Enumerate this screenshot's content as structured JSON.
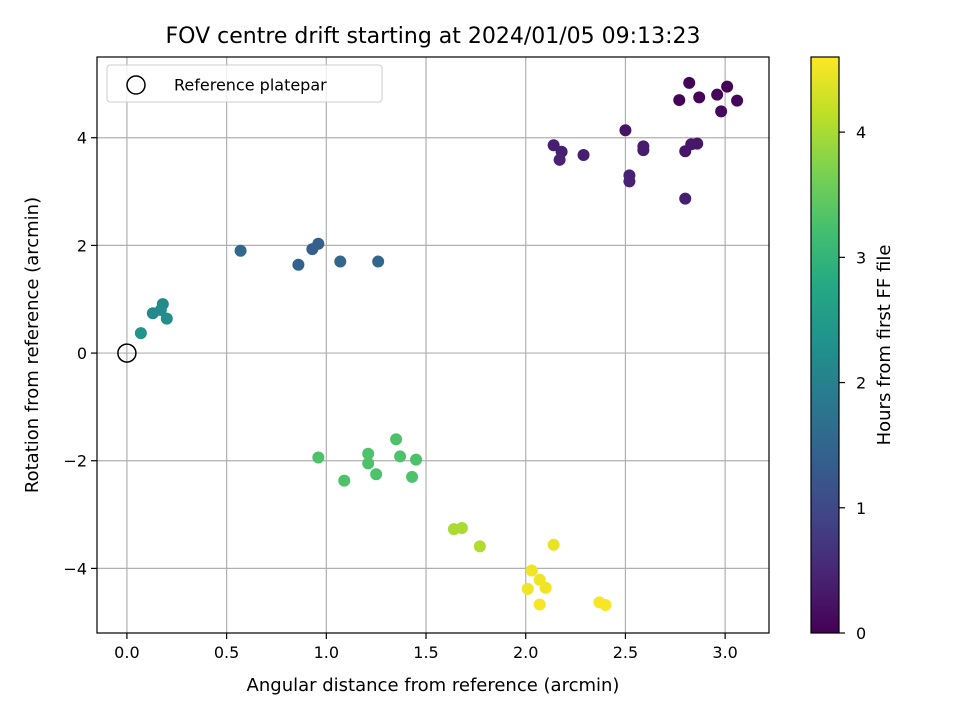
{
  "chart_data": {
    "type": "scatter",
    "title": "FOV centre drift starting at 2024/01/05 09:13:23",
    "xlabel": "Angular distance from reference (arcmin)",
    "ylabel": "Rotation from reference (arcmin)",
    "xlim": [
      -0.15,
      3.22
    ],
    "ylim": [
      -5.2,
      5.5
    ],
    "xticks": [
      0.0,
      0.5,
      1.0,
      1.5,
      2.0,
      2.5,
      3.0
    ],
    "xtick_labels": [
      "0.0",
      "0.5",
      "1.0",
      "1.5",
      "2.0",
      "2.5",
      "3.0"
    ],
    "yticks": [
      -4,
      -2,
      0,
      2,
      4
    ],
    "ytick_labels": [
      "−4",
      "−2",
      "0",
      "2",
      "4"
    ],
    "grid": true,
    "legend": {
      "position": "top-left",
      "entries": [
        "Reference platepar"
      ]
    },
    "reference_point": {
      "x": 0.0,
      "y": 0.0,
      "style": "open-circle"
    },
    "colorbar": {
      "label": "Hours from first FF file",
      "colormap": "viridis",
      "range": [
        0,
        4.6
      ],
      "ticks": [
        0,
        1,
        2,
        3,
        4
      ],
      "tick_labels": [
        "0",
        "1",
        "2",
        "3",
        "4"
      ]
    },
    "points": [
      {
        "x": 2.82,
        "y": 5.02,
        "c": 0.05
      },
      {
        "x": 3.01,
        "y": 4.95,
        "c": 0.05
      },
      {
        "x": 2.96,
        "y": 4.8,
        "c": 0.08
      },
      {
        "x": 2.87,
        "y": 4.75,
        "c": 0.06
      },
      {
        "x": 2.77,
        "y": 4.7,
        "c": 0.05
      },
      {
        "x": 3.06,
        "y": 4.69,
        "c": 0.08
      },
      {
        "x": 2.98,
        "y": 4.49,
        "c": 0.1
      },
      {
        "x": 2.5,
        "y": 4.14,
        "c": 0.25
      },
      {
        "x": 2.14,
        "y": 3.86,
        "c": 0.4
      },
      {
        "x": 2.83,
        "y": 3.88,
        "c": 0.3
      },
      {
        "x": 2.86,
        "y": 3.89,
        "c": 0.3
      },
      {
        "x": 2.59,
        "y": 3.84,
        "c": 0.35
      },
      {
        "x": 2.59,
        "y": 3.77,
        "c": 0.35
      },
      {
        "x": 2.8,
        "y": 3.75,
        "c": 0.3
      },
      {
        "x": 2.18,
        "y": 3.74,
        "c": 0.4
      },
      {
        "x": 2.29,
        "y": 3.68,
        "c": 0.4
      },
      {
        "x": 2.17,
        "y": 3.59,
        "c": 0.45
      },
      {
        "x": 2.52,
        "y": 3.3,
        "c": 0.45
      },
      {
        "x": 2.52,
        "y": 3.19,
        "c": 0.45
      },
      {
        "x": 2.8,
        "y": 2.87,
        "c": 0.4
      },
      {
        "x": 0.57,
        "y": 1.9,
        "c": 1.55
      },
      {
        "x": 0.96,
        "y": 2.03,
        "c": 1.4
      },
      {
        "x": 0.93,
        "y": 1.93,
        "c": 1.4
      },
      {
        "x": 1.07,
        "y": 1.7,
        "c": 1.5
      },
      {
        "x": 1.26,
        "y": 1.7,
        "c": 1.5
      },
      {
        "x": 0.86,
        "y": 1.64,
        "c": 1.45
      },
      {
        "x": 0.18,
        "y": 0.91,
        "c": 2.15
      },
      {
        "x": 0.17,
        "y": 0.8,
        "c": 2.2
      },
      {
        "x": 0.13,
        "y": 0.74,
        "c": 2.15
      },
      {
        "x": 0.2,
        "y": 0.64,
        "c": 2.25
      },
      {
        "x": 0.07,
        "y": 0.37,
        "c": 2.35
      },
      {
        "x": 1.35,
        "y": -1.6,
        "c": 3.3
      },
      {
        "x": 1.21,
        "y": -1.87,
        "c": 3.3
      },
      {
        "x": 1.37,
        "y": -1.92,
        "c": 3.3
      },
      {
        "x": 0.96,
        "y": -1.94,
        "c": 3.3
      },
      {
        "x": 1.45,
        "y": -1.98,
        "c": 3.3
      },
      {
        "x": 1.21,
        "y": -2.05,
        "c": 3.3
      },
      {
        "x": 1.25,
        "y": -2.25,
        "c": 3.3
      },
      {
        "x": 1.43,
        "y": -2.3,
        "c": 3.3
      },
      {
        "x": 1.09,
        "y": -2.37,
        "c": 3.3
      },
      {
        "x": 1.64,
        "y": -3.27,
        "c": 4.0
      },
      {
        "x": 1.68,
        "y": -3.25,
        "c": 4.0
      },
      {
        "x": 1.77,
        "y": -3.59,
        "c": 4.05
      },
      {
        "x": 2.14,
        "y": -3.56,
        "c": 4.45
      },
      {
        "x": 2.03,
        "y": -4.04,
        "c": 4.5
      },
      {
        "x": 2.07,
        "y": -4.21,
        "c": 4.5
      },
      {
        "x": 2.1,
        "y": -4.36,
        "c": 4.5
      },
      {
        "x": 2.01,
        "y": -4.38,
        "c": 4.5
      },
      {
        "x": 2.07,
        "y": -4.67,
        "c": 4.55
      },
      {
        "x": 2.37,
        "y": -4.63,
        "c": 4.55
      },
      {
        "x": 2.4,
        "y": -4.68,
        "c": 4.55
      }
    ]
  }
}
